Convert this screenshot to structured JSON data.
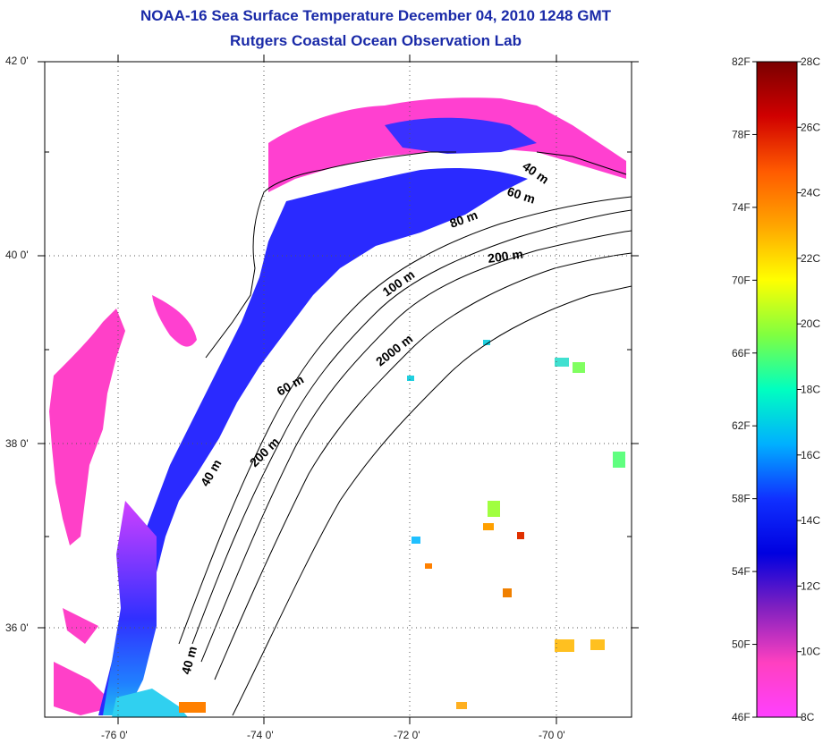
{
  "title": "NOAA-16 Sea Surface Temperature December 04, 2010 1248 GMT",
  "subtitle": "Rutgers Coastal Ocean Observation Lab",
  "lat_ticks": [
    "42 0'",
    "40 0'",
    "38 0'",
    "36 0'"
  ],
  "lon_ticks": [
    "-76 0'",
    "-74 0'",
    "-72 0'",
    "-70 0'"
  ],
  "contour_labels": [
    "40 m",
    "60 m",
    "80 m",
    "200 m",
    "100 m",
    "2000 m",
    "60 m",
    "200 m",
    "40 m",
    "40 m"
  ],
  "colorbar": {
    "f_labels": [
      "82F",
      "78F",
      "74F",
      "70F",
      "66F",
      "62F",
      "58F",
      "54F",
      "50F",
      "46F"
    ],
    "c_labels": [
      "28C",
      "26C",
      "24C",
      "22C",
      "20C",
      "18C",
      "16C",
      "14C",
      "12C",
      "10C",
      "8C"
    ],
    "colors": [
      "#7a0000",
      "#d00000",
      "#ff5a00",
      "#ffa500",
      "#ffff00",
      "#80ff40",
      "#00ffc0",
      "#00b0ff",
      "#1030ff",
      "#0000e0",
      "#8020c0",
      "#ff40c0",
      "#ff40ff"
    ]
  },
  "colors": {
    "title": "#1a2aa8",
    "land": "#ffffff",
    "ocean_cold": "#2a2aff",
    "ocean_pink": "#ff40d0"
  }
}
